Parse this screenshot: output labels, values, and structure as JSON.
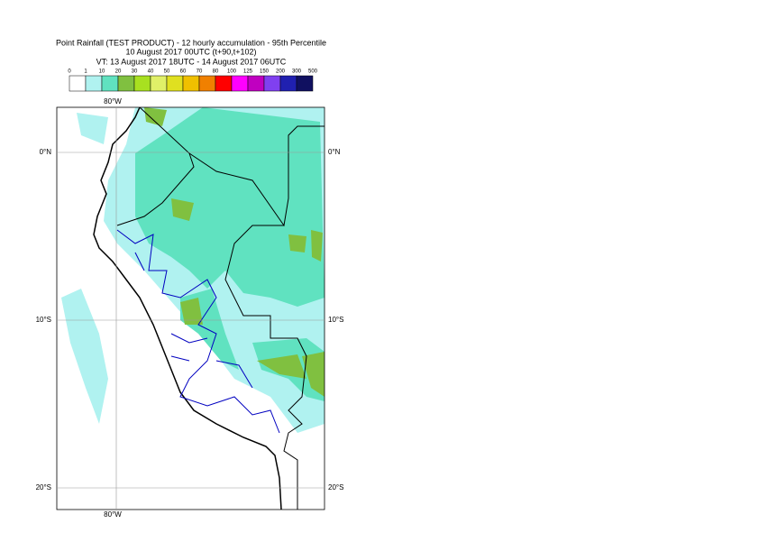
{
  "title": [
    "Point Rainfall (TEST PRODUCT) - 12 hourly accumulation - 95th Percentile",
    "10 August 2017 00UTC (t+90,t+102)",
    "VT: 13 August 2017 18UTC - 14 August 2017 06UTC"
  ],
  "legend": {
    "labels": [
      0,
      1,
      10,
      20,
      30,
      40,
      50,
      60,
      70,
      80,
      100,
      125,
      150,
      200,
      300,
      500
    ],
    "colors": [
      "#ffffff",
      "#b0f2f0",
      "#60e2c0",
      "#80c040",
      "#a8e020",
      "#e0f068",
      "#e0e020",
      "#f0c000",
      "#f08000",
      "#ff0000",
      "#ff00ff",
      "#c000c0",
      "#8040f0",
      "#2020b0",
      "#101060"
    ]
  },
  "map": {
    "longitude": [
      "80°W"
    ],
    "latitude": [
      "0°N",
      "10°S",
      "20°S"
    ]
  }
}
